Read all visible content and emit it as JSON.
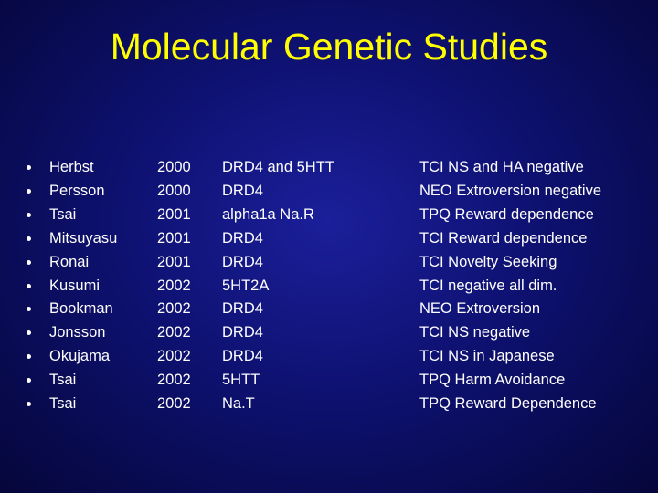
{
  "title": "Molecular Genetic Studies",
  "table": {
    "rows": [
      [
        "Herbst",
        "2000",
        "DRD4 and 5HTT",
        "TCI NS and HA negative"
      ],
      [
        "Persson",
        "2000",
        "DRD4",
        "NEO Extroversion negative"
      ],
      [
        "Tsai",
        "2001",
        "alpha1a Na.R",
        "TPQ Reward dependence"
      ],
      [
        "Mitsuyasu",
        "2001",
        "DRD4",
        "TCI Reward dependence"
      ],
      [
        "Ronai",
        "2001",
        "DRD4",
        "TCI Novelty Seeking"
      ],
      [
        "Kusumi",
        "2002",
        "5HT2A",
        "TCI negative all dim."
      ],
      [
        "Bookman",
        "2002",
        "DRD4",
        "NEO Extroversion"
      ],
      [
        "Jonsson",
        "2002",
        "DRD4",
        "TCI NS negative"
      ],
      [
        "Okujama",
        "2002",
        "DRD4",
        "TCI NS in Japanese"
      ],
      [
        "Tsai",
        "2002",
        "5HTT",
        "TPQ Harm Avoidance"
      ],
      [
        "Tsai",
        "2002",
        "Na.T",
        "TPQ Reward Dependence"
      ]
    ]
  }
}
